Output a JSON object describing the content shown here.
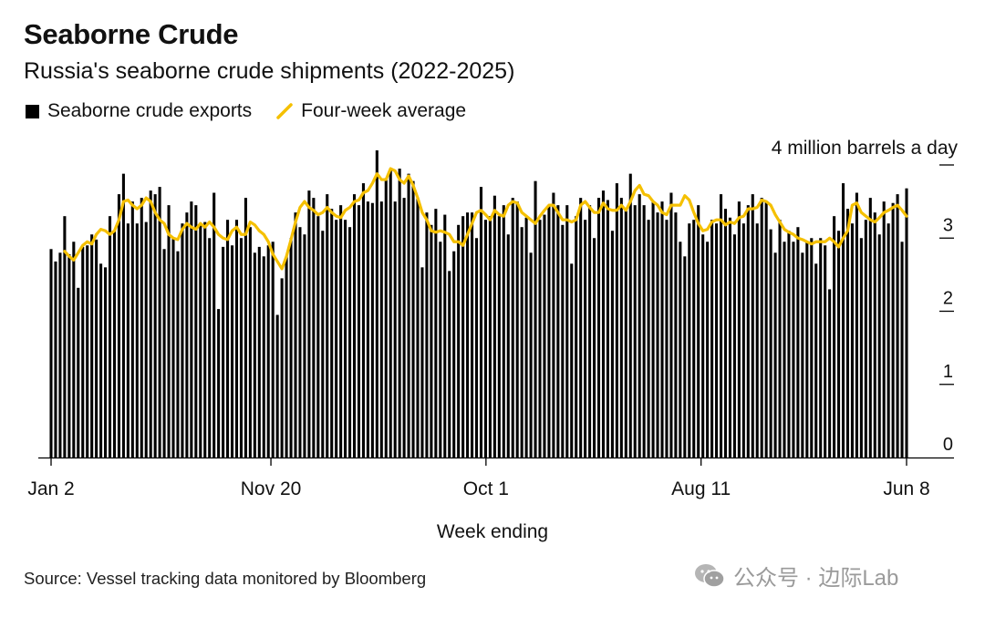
{
  "header": {
    "title": "Seaborne Crude",
    "subtitle": "Russia's seaborne crude shipments (2022-2025)"
  },
  "legend": {
    "bars_label": "Seaborne crude exports",
    "line_label": "Four-week average"
  },
  "footer": {
    "source": "Source: Vessel tracking data monitored by Bloomberg",
    "watermark": "公众号 · 边际Lab"
  },
  "colors": {
    "bars": "#000000",
    "line": "#f5c000",
    "axis": "#000000"
  },
  "icons": {
    "watermark_logo": "wechat-icon"
  },
  "chart_data": {
    "type": "bar",
    "xlabel": "Week ending",
    "ylabel": "",
    "y_unit_label": "4 million barrels a day",
    "ylim": [
      0,
      4
    ],
    "yticks": [
      0,
      1,
      2,
      3,
      4
    ],
    "ytick_labels": [
      "0",
      "1",
      "2",
      "3",
      ""
    ],
    "grid": false,
    "legend_position": "top-left",
    "x_start": "2022-01-02",
    "x_end": "2025-06-08",
    "xtick_labels": [
      {
        "label": "Jan 2",
        "date": "2022-01-02"
      },
      {
        "label": "Nov 20",
        "date": "2022-11-20"
      },
      {
        "label": "Oct 1",
        "date": "2023-10-01"
      },
      {
        "label": "Aug 11",
        "date": "2024-08-11"
      },
      {
        "label": "Jun 8",
        "date": "2025-06-08"
      }
    ],
    "series": [
      {
        "name": "Seaborne crude exports",
        "type": "bar",
        "values": [
          2.85,
          2.68,
          2.8,
          3.3,
          2.78,
          2.95,
          2.32,
          2.88,
          2.9,
          3.05,
          2.98,
          2.65,
          2.6,
          3.3,
          3.1,
          3.6,
          3.88,
          3.2,
          3.5,
          3.2,
          3.55,
          3.22,
          3.65,
          3.6,
          3.7,
          2.85,
          3.45,
          3.0,
          2.82,
          3.2,
          3.35,
          3.5,
          3.45,
          3.18,
          3.22,
          3.0,
          3.62,
          2.03,
          2.88,
          3.25,
          2.9,
          3.25,
          3.0,
          3.55,
          3.15,
          2.8,
          2.88,
          2.75,
          2.9,
          2.95,
          1.95,
          2.45,
          2.75,
          3.0,
          3.35,
          3.15,
          3.05,
          3.65,
          3.55,
          3.3,
          3.1,
          3.6,
          3.4,
          3.25,
          3.45,
          3.25,
          3.15,
          3.6,
          3.45,
          3.75,
          3.5,
          3.48,
          4.2,
          3.5,
          3.82,
          3.95,
          3.5,
          3.95,
          3.55,
          3.88,
          3.78,
          3.55,
          2.6,
          3.35,
          3.18,
          3.4,
          2.95,
          3.32,
          2.55,
          2.82,
          3.18,
          3.3,
          3.35,
          3.35,
          3.0,
          3.7,
          3.25,
          3.3,
          3.58,
          3.3,
          3.45,
          3.05,
          3.55,
          3.5,
          3.15,
          3.28,
          2.8,
          3.78,
          3.25,
          3.32,
          3.45,
          3.62,
          3.45,
          3.18,
          3.45,
          2.65,
          3.3,
          3.55,
          3.25,
          3.45,
          3.0,
          3.55,
          3.65,
          3.52,
          3.1,
          3.75,
          3.55,
          3.38,
          3.88,
          3.45,
          3.6,
          3.45,
          3.25,
          3.5,
          3.35,
          3.5,
          3.25,
          3.62,
          3.35,
          2.95,
          2.75,
          3.2,
          3.25,
          3.45,
          3.05,
          2.95,
          3.25,
          3.2,
          3.6,
          3.4,
          3.28,
          3.05,
          3.5,
          3.2,
          3.45,
          3.6,
          3.2,
          3.55,
          3.5,
          3.12,
          2.8,
          3.25,
          2.95,
          3.1,
          2.95,
          3.15,
          2.8,
          2.95,
          3.0,
          2.65,
          3.0,
          2.9,
          2.3,
          3.3,
          3.1,
          3.75,
          3.4,
          3.2,
          3.62,
          3.0,
          3.25,
          3.55,
          3.35,
          3.05,
          3.5,
          3.2,
          3.48,
          3.6,
          2.95,
          3.68
        ]
      },
      {
        "name": "Four-week average",
        "type": "line",
        "values": [
          2.85,
          2.9,
          2.97,
          2.82,
          2.75,
          2.7,
          2.8,
          2.9,
          2.95,
          2.92,
          3.05,
          3.12,
          3.1,
          3.05,
          3.1,
          3.25,
          3.5,
          3.52,
          3.45,
          3.4,
          3.45,
          3.55,
          3.5,
          3.35,
          3.25,
          3.2,
          3.05,
          3.0,
          2.98,
          3.12,
          3.2,
          3.15,
          3.12,
          3.2,
          3.15,
          3.22,
          3.15,
          3.05,
          3.0,
          2.98,
          3.1,
          3.15,
          3.05,
          3.05,
          3.22,
          3.18,
          3.1,
          3.05,
          2.95,
          2.78,
          2.68,
          2.58,
          2.75,
          2.98,
          3.22,
          3.42,
          3.5,
          3.42,
          3.38,
          3.32,
          3.35,
          3.42,
          3.35,
          3.3,
          3.28,
          3.38,
          3.42,
          3.5,
          3.52,
          3.62,
          3.65,
          3.75,
          3.88,
          3.8,
          3.8,
          3.95,
          3.92,
          3.8,
          3.75,
          3.85,
          3.72,
          3.55,
          3.35,
          3.25,
          3.1,
          3.08,
          3.1,
          3.08,
          3.05,
          2.95,
          2.95,
          2.9,
          3.05,
          3.2,
          3.35,
          3.38,
          3.32,
          3.25,
          3.38,
          3.32,
          3.3,
          3.45,
          3.5,
          3.48,
          3.35,
          3.3,
          3.25,
          3.2,
          3.3,
          3.38,
          3.45,
          3.45,
          3.35,
          3.25,
          3.25,
          3.22,
          3.25,
          3.45,
          3.5,
          3.42,
          3.35,
          3.35,
          3.48,
          3.4,
          3.38,
          3.38,
          3.45,
          3.38,
          3.5,
          3.65,
          3.72,
          3.6,
          3.58,
          3.5,
          3.45,
          3.35,
          3.32,
          3.45,
          3.45,
          3.45,
          3.58,
          3.52,
          3.35,
          3.2,
          3.1,
          3.12,
          3.22,
          3.25,
          3.25,
          3.18,
          3.22,
          3.2,
          3.28,
          3.3,
          3.4,
          3.4,
          3.42,
          3.52,
          3.5,
          3.45,
          3.32,
          3.22,
          3.12,
          3.08,
          3.05,
          3.0,
          2.98,
          2.95,
          2.92,
          2.95,
          2.95,
          2.95,
          3.0,
          2.95,
          2.88,
          3.0,
          3.1,
          3.45,
          3.48,
          3.35,
          3.3,
          3.25,
          3.22,
          3.28,
          3.35,
          3.38,
          3.42,
          3.45,
          3.38,
          3.3,
          3.32,
          3.35
        ]
      }
    ]
  }
}
